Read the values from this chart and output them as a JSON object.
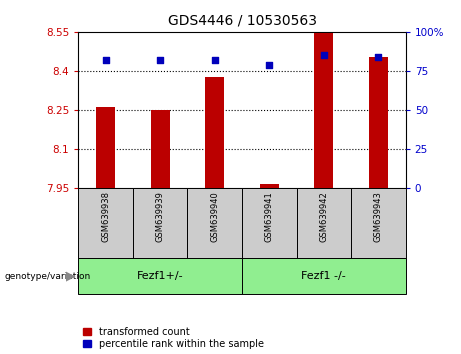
{
  "title": "GDS4446 / 10530563",
  "samples": [
    "GSM639938",
    "GSM639939",
    "GSM639940",
    "GSM639941",
    "GSM639942",
    "GSM639943"
  ],
  "red_values": [
    8.26,
    8.25,
    8.375,
    7.965,
    8.545,
    8.455
  ],
  "blue_values": [
    82,
    82,
    82,
    79,
    85,
    84
  ],
  "ylim_left": [
    7.95,
    8.55
  ],
  "ylim_right": [
    0,
    100
  ],
  "yticks_left": [
    7.95,
    8.1,
    8.25,
    8.4,
    8.55
  ],
  "yticks_right": [
    0,
    25,
    50,
    75,
    100
  ],
  "ytick_labels_left": [
    "7.95",
    "8.1",
    "8.25",
    "8.4",
    "8.55"
  ],
  "ytick_labels_right": [
    "0",
    "25",
    "50",
    "75",
    "100%"
  ],
  "grid_lines": [
    8.1,
    8.25,
    8.4
  ],
  "legend_red": "transformed count",
  "legend_blue": "percentile rank within the sample",
  "red_color": "#BB0000",
  "blue_color": "#0000BB",
  "bar_bottom": 7.95,
  "tick_color_left": "#CC0000",
  "tick_color_right": "#0000CC",
  "sample_box_color": "#CCCCCC",
  "group_box_color": "#90EE90",
  "group1_label": "Fezf1+/-",
  "group2_label": "Fezf1 -/-",
  "genotype_label": "genotype/variation"
}
